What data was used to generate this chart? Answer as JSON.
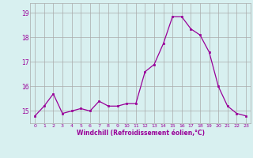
{
  "x": [
    0,
    1,
    2,
    3,
    4,
    5,
    6,
    7,
    8,
    9,
    10,
    11,
    12,
    13,
    14,
    15,
    16,
    17,
    18,
    19,
    20,
    21,
    22,
    23
  ],
  "y": [
    14.8,
    15.2,
    15.7,
    14.9,
    15.0,
    15.1,
    15.0,
    15.4,
    15.2,
    15.2,
    15.3,
    15.3,
    16.6,
    16.9,
    17.75,
    18.85,
    18.85,
    18.35,
    18.1,
    17.4,
    16.0,
    15.2,
    14.9,
    14.8
  ],
  "line_color": "#990099",
  "marker_color": "#990099",
  "bg_color": "#d8f0f0",
  "grid_color": "#aaaaaa",
  "xlabel": "Windchill (Refroidissement éolien,°C)",
  "yticks": [
    15,
    16,
    17,
    18,
    19
  ],
  "xticks": [
    0,
    1,
    2,
    3,
    4,
    5,
    6,
    7,
    8,
    9,
    10,
    11,
    12,
    13,
    14,
    15,
    16,
    17,
    18,
    19,
    20,
    21,
    22,
    23
  ],
  "ylim": [
    14.5,
    19.4
  ],
  "xlim": [
    -0.5,
    23.5
  ],
  "figw": 3.2,
  "figh": 2.0,
  "dpi": 100
}
